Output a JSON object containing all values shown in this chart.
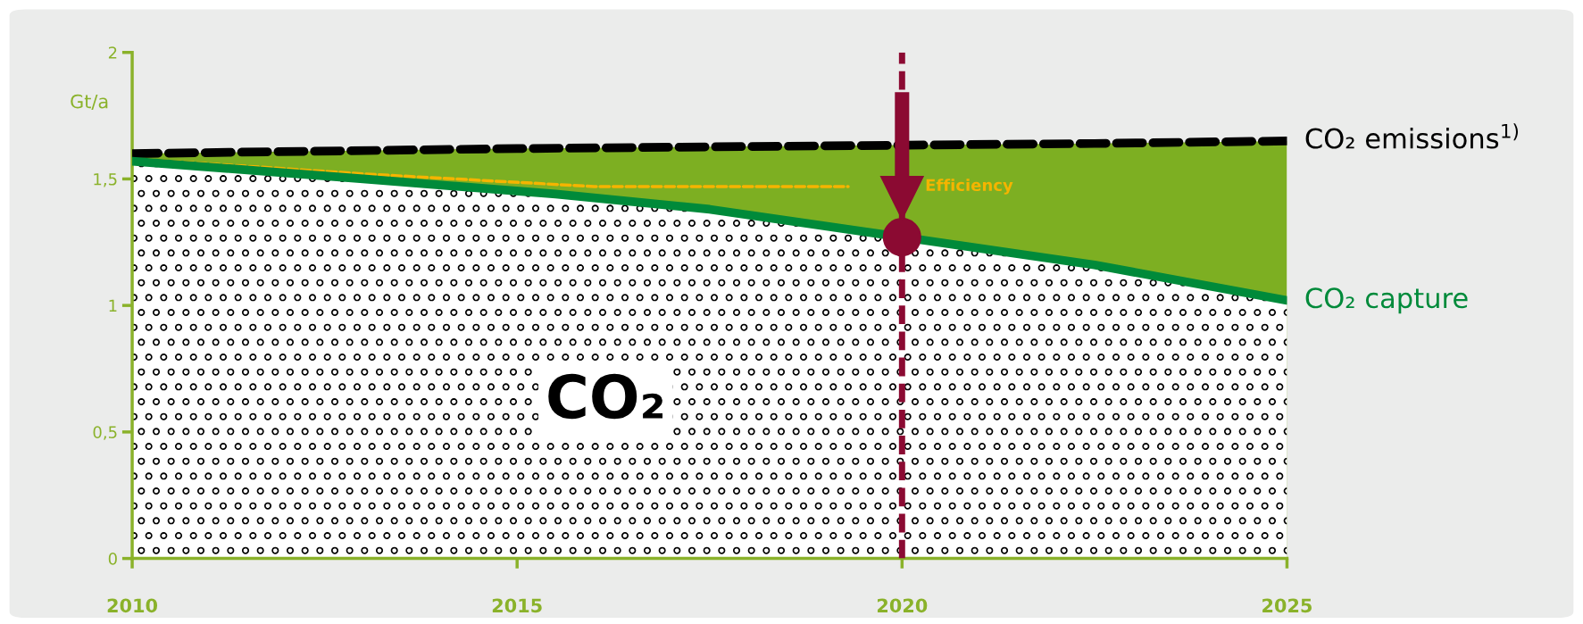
{
  "chart_data": {
    "type": "line",
    "ylabel": "Gt/a",
    "xlim": [
      2010,
      2025
    ],
    "xticks": [
      2010,
      2015,
      2020,
      2025
    ],
    "ylim": [
      0,
      2
    ],
    "yticks": [
      0,
      {
        "value": 0.5,
        "label": "0,5"
      },
      1,
      {
        "value": 1.5,
        "label": "1,5"
      },
      2
    ],
    "grid": false,
    "legend": false,
    "series": [
      {
        "type": "area",
        "name": "CO₂ capture",
        "color": "#008a3a",
        "line_style": "solid",
        "x": [
          2010,
          2013,
          2015.5,
          2017.5,
          2020,
          2022.5,
          2025
        ],
        "values": [
          1.57,
          1.5,
          1.44,
          1.38,
          1.27,
          1.16,
          1.02
        ]
      },
      {
        "type": "area",
        "name": "CO₂ emissions$^{1)}$",
        "color": "#000000",
        "line_style": "dashed",
        "x": [
          2010,
          2015,
          2022.5,
          2025
        ],
        "values": [
          1.6,
          1.62,
          1.64,
          1.65
        ]
      },
      {
        "name": "Efficiency",
        "color": "#f5b400",
        "line_style": "dashed",
        "x": [
          2010,
          2013,
          2016,
          2019.3
        ],
        "values": [
          1.58,
          1.52,
          1.47,
          1.47
        ]
      },
      {
        "type": "scatter",
        "color": "#8b0a32",
        "marker": "circle",
        "x": [
          2020
        ],
        "values": [
          1.27
        ]
      }
    ],
    "ref_lines": [
      {
        "axis": "x",
        "value": 2020,
        "color": "#8b0a32",
        "line_style": "dashed"
      }
    ],
    "annotations": [
      "CO₂"
    ]
  }
}
